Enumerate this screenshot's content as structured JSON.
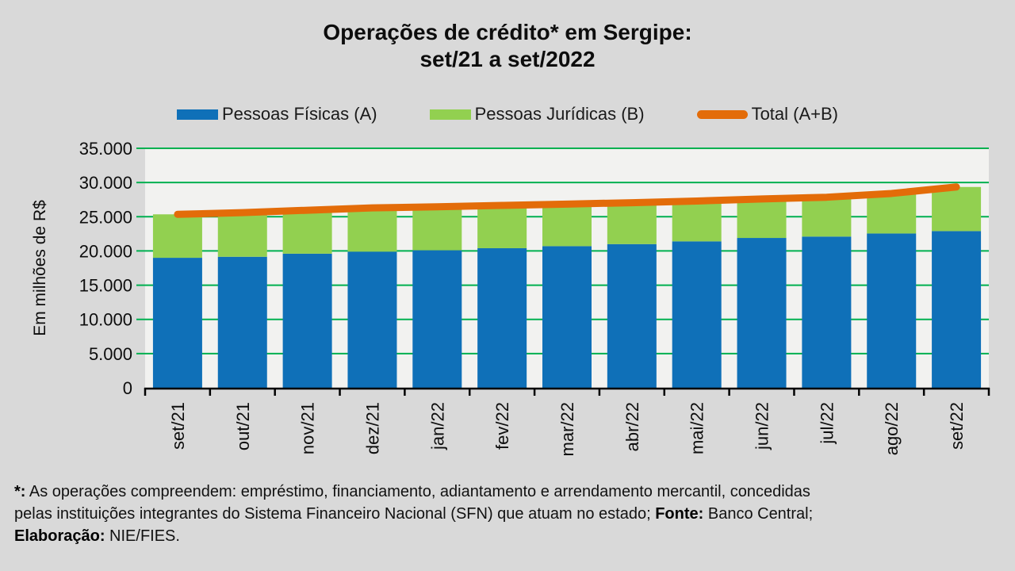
{
  "title": {
    "line1": "Operações de crédito* em Sergipe:",
    "line2": "set/21 a set/2022"
  },
  "legend": {
    "items": [
      {
        "label": "Pessoas Físicas (A)"
      },
      {
        "label": "Pessoas Jurídicas (B)"
      },
      {
        "label": "Total (A+B)"
      }
    ]
  },
  "chart_data": {
    "type": "bar",
    "subtype": "stacked-bars-with-total-line",
    "title": "Operações de crédito* em Sergipe: set/21 a set/2022",
    "categories": [
      "set/21",
      "out/21",
      "nov/21",
      "dez/21",
      "jan/22",
      "fev/22",
      "mar/22",
      "abr/22",
      "mai/22",
      "jun/22",
      "jul/22",
      "ago/22",
      "set/22"
    ],
    "series": [
      {
        "name": "Pessoas Físicas (A)",
        "type": "bar",
        "color": "#0F70B8",
        "values": [
          19000,
          19150,
          19600,
          19900,
          20100,
          20400,
          20700,
          21000,
          21400,
          21900,
          22100,
          22550,
          22900
        ]
      },
      {
        "name": "Pessoas Jurídicas (B)",
        "type": "bar",
        "color": "#92D050",
        "values": [
          6350,
          6450,
          6350,
          6400,
          6350,
          6250,
          6150,
          6050,
          5900,
          5700,
          5750,
          5850,
          6450
        ]
      },
      {
        "name": "Total (A+B)",
        "type": "line",
        "color": "#E36C09",
        "values": [
          25350,
          25600,
          25950,
          26300,
          26450,
          26650,
          26850,
          27050,
          27300,
          27600,
          27850,
          28400,
          29350
        ]
      }
    ],
    "xlabel": "",
    "ylabel": "Em milhões de R$",
    "ylim": [
      0,
      35000
    ],
    "ytick_step": 5000,
    "ytick_labels": [
      "0",
      "5.000",
      "10.000",
      "15.000",
      "20.000",
      "25.000",
      "30.000",
      "35.000"
    ],
    "grid": true,
    "gridline_color": "#00B050",
    "legend_position": "top",
    "colors": {
      "outer_bg": "#D9D9D9",
      "plot_bg": "#F2F2F0",
      "axis": "#000000"
    }
  },
  "footnote": {
    "line1_bold": "*:",
    "line1_text": " As operações compreendem: empréstimo, financiamento, adiantamento e arrendamento mercantil, concedidas",
    "line2_text": "pelas instituições integrantes do Sistema Financeiro Nacional (SFN) que atuam no estado; ",
    "line2_bold": "Fonte:",
    "line2_text2": " Banco Central;",
    "line3_bold": "Elaboração:",
    "line3_text": " NIE/FIES."
  }
}
